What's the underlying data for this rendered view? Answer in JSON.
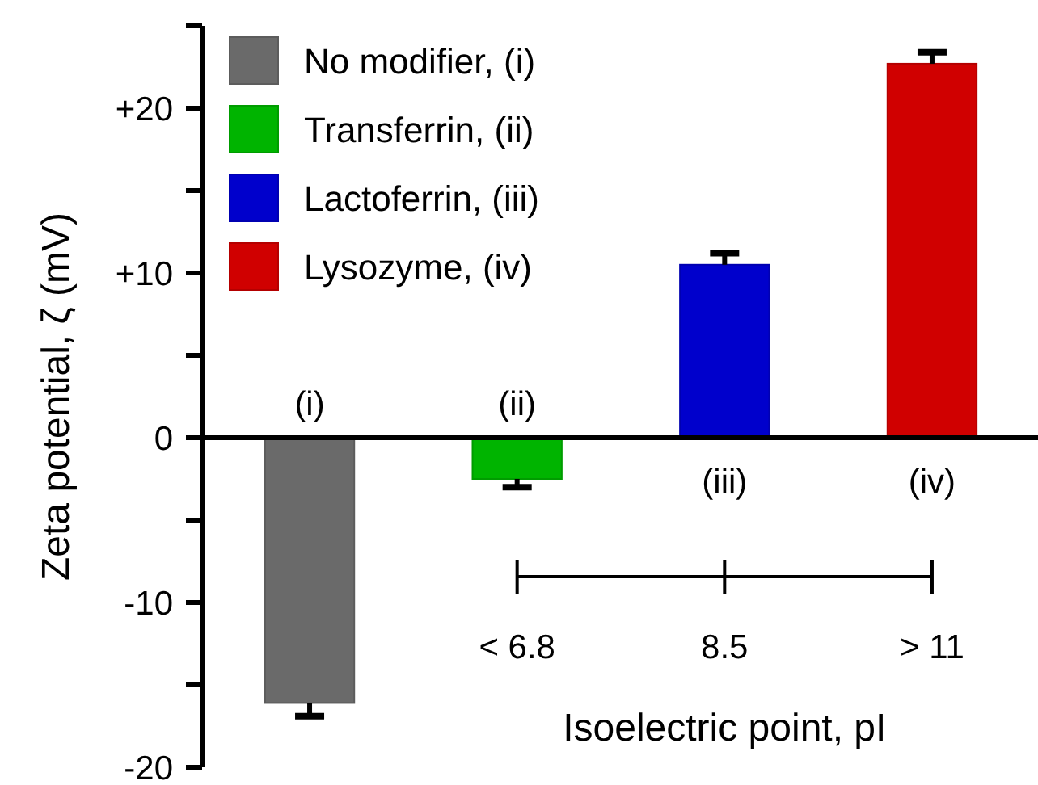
{
  "chart_data": {
    "type": "bar",
    "xlabel": "Isoelectric point, pI",
    "ylabel": "Zeta potential, ζ (mV)",
    "categories": [
      "(i)",
      "(ii)",
      "(iii)",
      "(iv)"
    ],
    "series": [
      {
        "name": "No modifier, (i)",
        "color": "#6a6a6a",
        "values": [
          -16.1,
          null,
          null,
          null
        ],
        "errors": [
          0.8,
          null,
          null,
          null
        ]
      },
      {
        "name": "Transferrin, (ii)",
        "color": "#00b400",
        "values": [
          null,
          -2.5,
          null,
          null
        ],
        "errors": [
          null,
          0.5,
          null,
          null
        ]
      },
      {
        "name": "Lactoferrin, (iii)",
        "color": "#0000cc",
        "values": [
          null,
          null,
          10.5,
          null
        ],
        "errors": [
          null,
          null,
          0.7,
          null
        ]
      },
      {
        "name": "Lysozyme, (iv)",
        "color": "#d00000",
        "values": [
          null,
          null,
          null,
          22.7
        ],
        "errors": [
          null,
          null,
          null,
          0.7
        ]
      }
    ],
    "ylim": [
      -20,
      25
    ],
    "yticks": [
      -20,
      {
        "value": -15,
        "label": null
      },
      -10,
      {
        "value": -5,
        "label": null
      },
      0,
      {
        "value": 5,
        "label": null
      },
      {
        "value": 10,
        "label": "+10"
      },
      {
        "value": 15,
        "label": null
      },
      {
        "value": 20,
        "label": "+20"
      },
      {
        "value": 25,
        "label": null
      }
    ],
    "annotations": [
      "< 6.8",
      "8.5",
      "> 11"
    ],
    "legend": "top left",
    "grid": false
  }
}
